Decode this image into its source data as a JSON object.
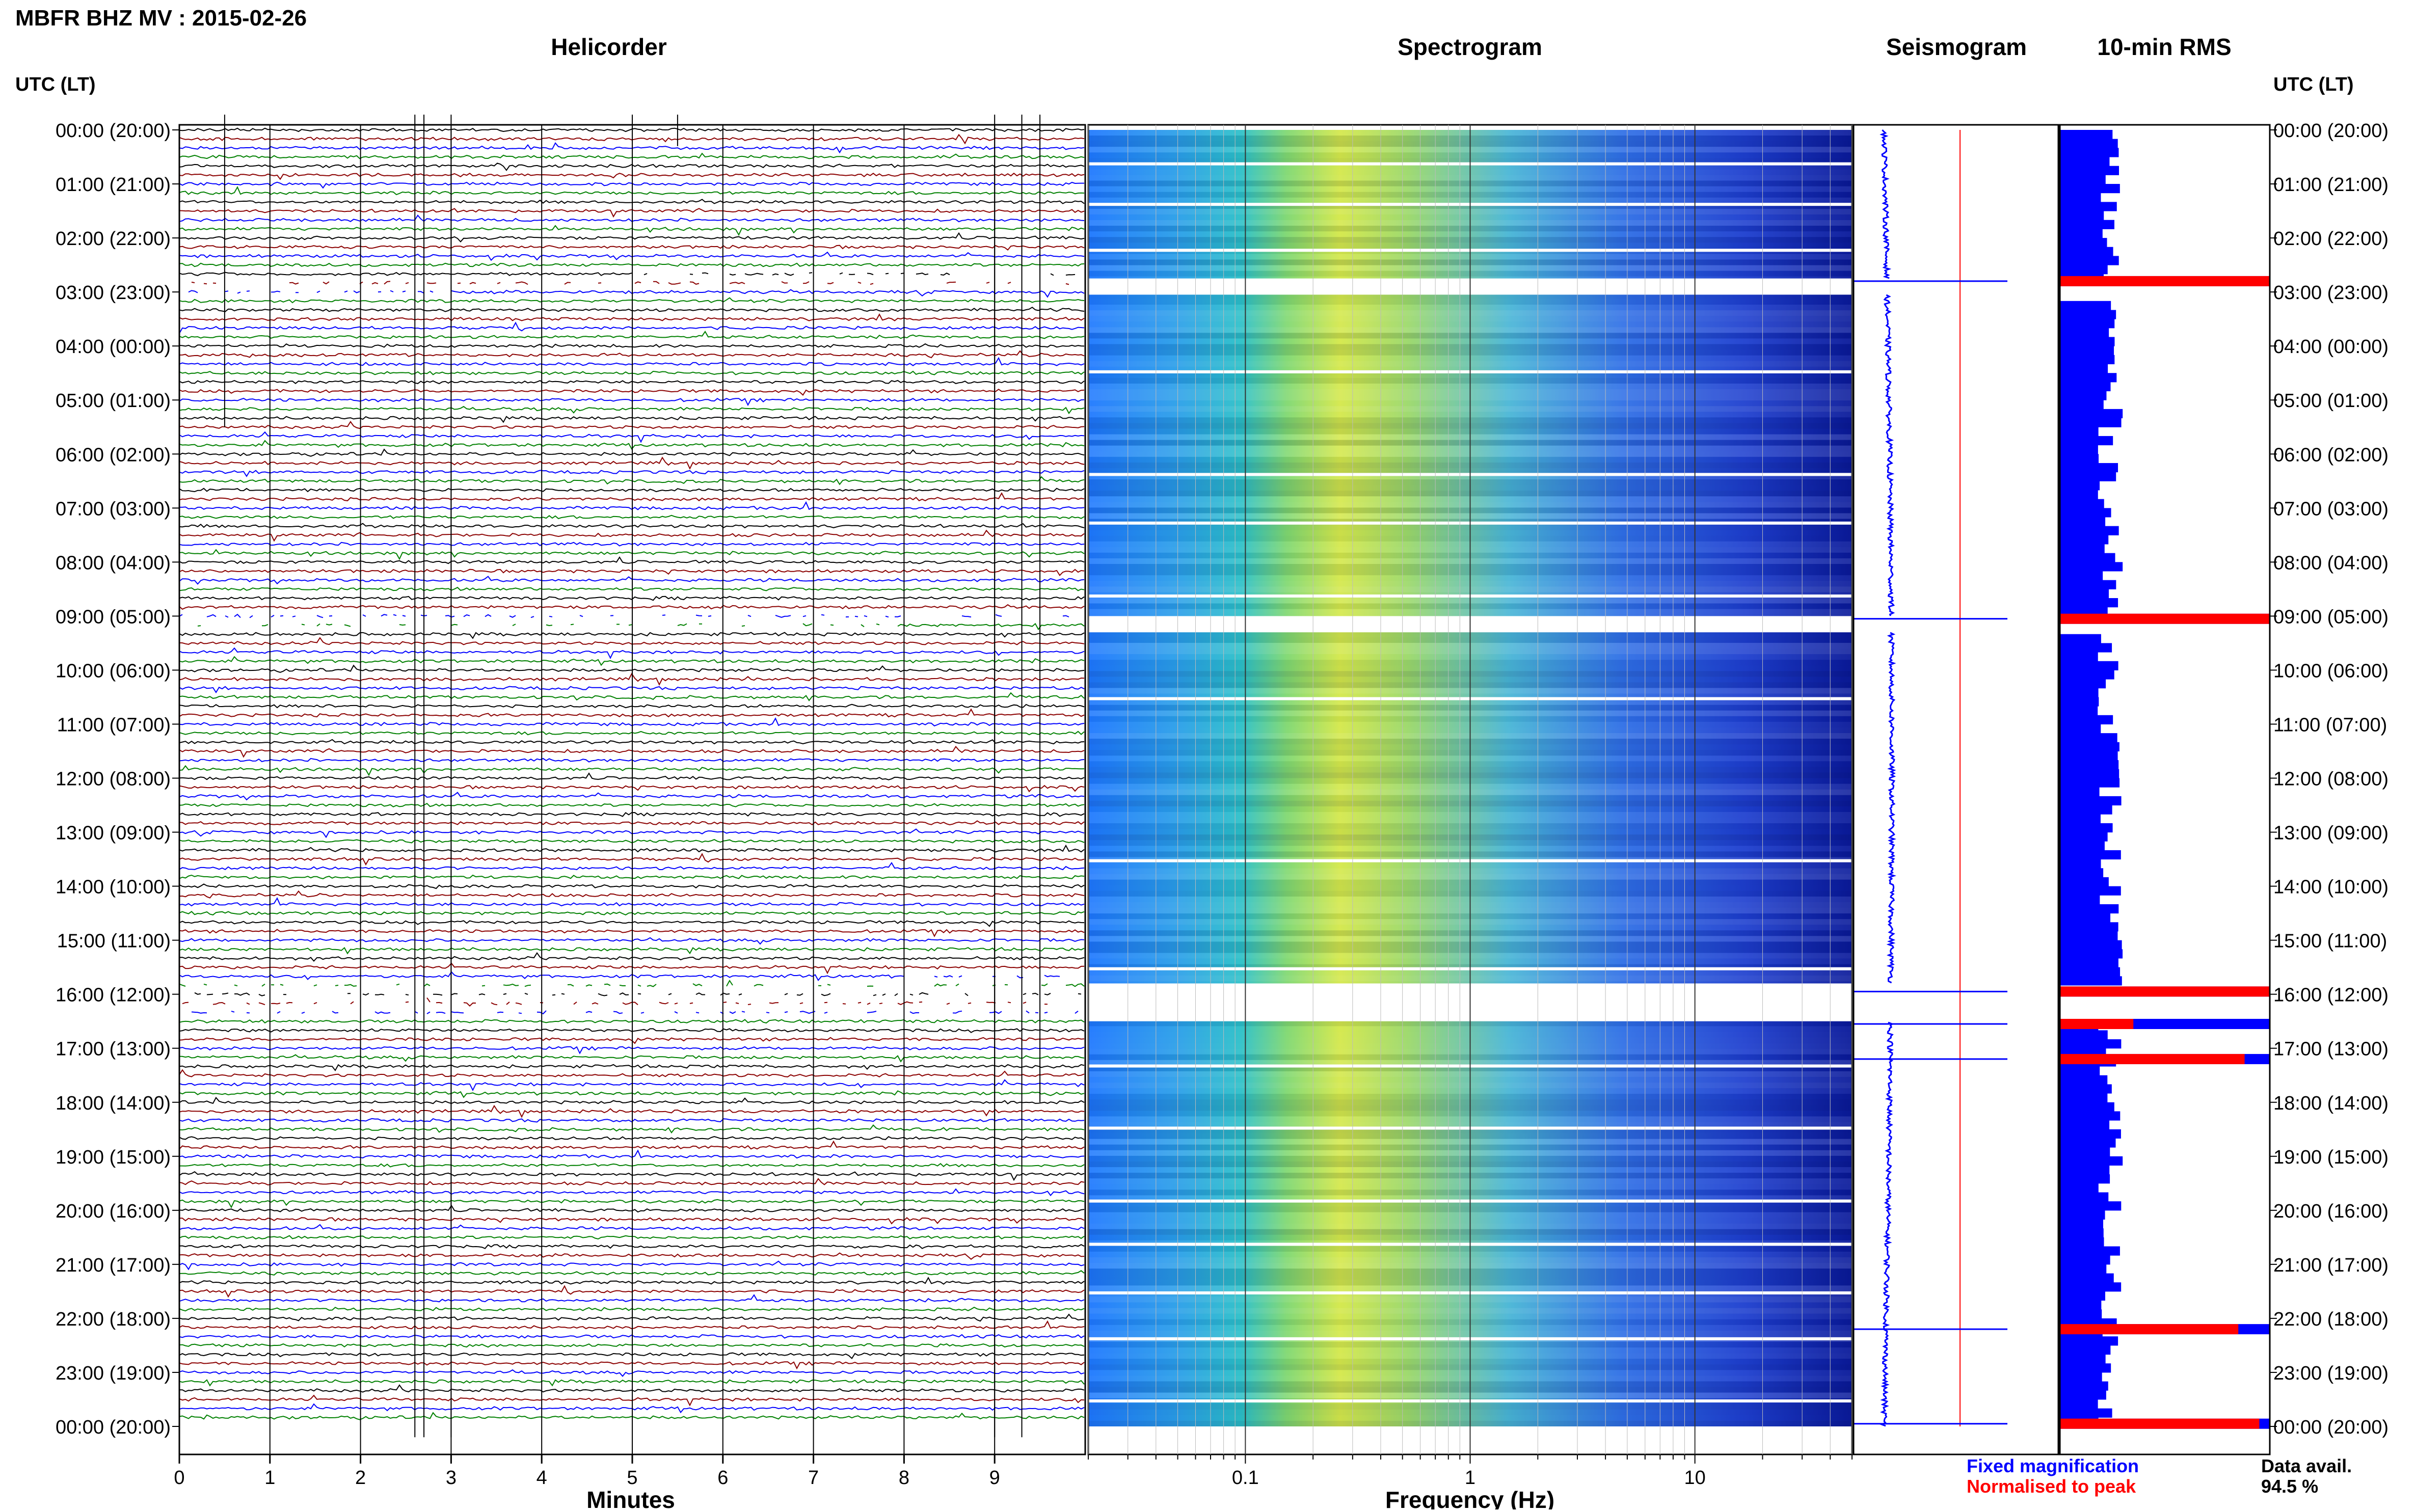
{
  "header": {
    "title": "MBFR BHZ MV : 2015-02-26",
    "left_axis_title": "UTC (LT)",
    "right_axis_title": "UTC (LT)"
  },
  "panels": {
    "helicorder": "Helicorder",
    "spectrogram": "Spectrogram",
    "seismogram": "Seismogram",
    "rms": "10-min RMS"
  },
  "time_labels": [
    "00:00 (20:00)",
    "01:00 (21:00)",
    "02:00 (22:00)",
    "03:00 (23:00)",
    "04:00 (00:00)",
    "05:00 (01:00)",
    "06:00 (02:00)",
    "07:00 (03:00)",
    "08:00 (04:00)",
    "09:00 (05:00)",
    "10:00 (06:00)",
    "11:00 (07:00)",
    "12:00 (08:00)",
    "13:00 (09:00)",
    "14:00 (10:00)",
    "15:00 (11:00)",
    "16:00 (12:00)",
    "17:00 (13:00)",
    "18:00 (14:00)",
    "19:00 (15:00)",
    "20:00 (16:00)",
    "21:00 (17:00)",
    "22:00 (18:00)",
    "23:00 (19:00)",
    "00:00 (20:00)"
  ],
  "legend": {
    "fixed": "Fixed magnification",
    "normalised": "Normalised to peak",
    "avail_label": "Data avail.",
    "avail_value": "94.5 %"
  },
  "colors": {
    "trace_cycle": [
      "#000000",
      "#8b0000",
      "#0000ff",
      "#008000"
    ],
    "fixed": "#0000ff",
    "normalised": "#ff0000"
  },
  "chart_data": [
    {
      "type": "line",
      "name": "Helicorder",
      "xlabel": "Minutes",
      "xlim": [
        0,
        10
      ],
      "x_ticks": [
        "0",
        "1",
        "2",
        "3",
        "4",
        "5",
        "6",
        "7",
        "8",
        "9"
      ],
      "rows_per_hour": 6,
      "n_rows": 144
    },
    {
      "type": "heatmap",
      "name": "Spectrogram",
      "xlabel": "Frequency (Hz)",
      "xscale": "log",
      "xlim": [
        0.02,
        50
      ],
      "x_ticks": [
        {
          "value": 0.1,
          "label": "0.1"
        },
        {
          "value": 1,
          "label": "1"
        },
        {
          "value": 10,
          "label": "10"
        }
      ],
      "energy_peak_hz": 0.25,
      "gap_hours": [
        [
          2.75,
          3.05
        ],
        [
          9.0,
          9.3
        ],
        [
          15.8,
          16.5
        ]
      ]
    },
    {
      "type": "line",
      "name": "Seismogram",
      "gap_hours": [
        [
          2.75,
          3.05
        ],
        [
          9.0,
          9.3
        ],
        [
          15.8,
          16.5
        ]
      ]
    },
    {
      "type": "bar",
      "name": "10-min RMS",
      "orientation": "horizontal",
      "bars_per_hour": 6,
      "peaks": [
        {
          "hour": 2.8,
          "normalised": 1.0
        },
        {
          "hour": 9.05,
          "normalised": 1.0
        },
        {
          "hour": 15.95,
          "normalised": 1.0
        },
        {
          "hour": 16.55,
          "normalised": 0.35
        },
        {
          "hour": 17.2,
          "normalised": 0.88
        },
        {
          "hour": 22.2,
          "normalised": 0.85
        },
        {
          "hour": 23.95,
          "normalised": 0.95
        }
      ]
    }
  ]
}
